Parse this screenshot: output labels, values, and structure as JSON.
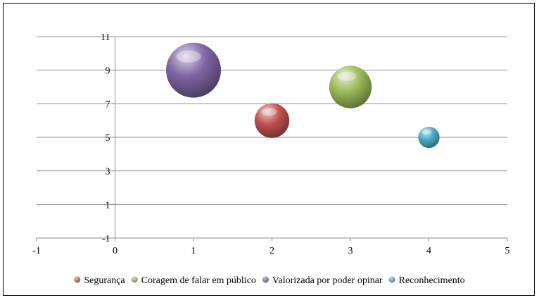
{
  "chart_data": {
    "type": "bubble",
    "title": "",
    "xlabel": "",
    "ylabel": "",
    "xlim": [
      -1,
      5
    ],
    "ylim": [
      -1,
      11
    ],
    "x_ticks": [
      -1,
      0,
      1,
      2,
      3,
      4,
      5
    ],
    "y_ticks": [
      1,
      3,
      5,
      7,
      9,
      11
    ],
    "y_tick_labels_shown": [
      1,
      3,
      5,
      7,
      9,
      11,
      -1
    ],
    "grid": {
      "horizontal": true,
      "vertical": false
    },
    "legend_position": "bottom",
    "series": [
      {
        "name": "Segurança",
        "x": 2,
        "y": 6,
        "size": 4,
        "color": "#c0504d"
      },
      {
        "name": "Coragem de falar em público",
        "x": 3,
        "y": 8,
        "size": 6,
        "color": "#9bbb59"
      },
      {
        "name": "Valorizada por poder opinar",
        "x": 1,
        "y": 9,
        "size": 10,
        "color": "#8064a2"
      },
      {
        "name": "Reconhecimento",
        "x": 4,
        "y": 5,
        "size": 1.5,
        "color": "#4bacc6"
      }
    ]
  }
}
